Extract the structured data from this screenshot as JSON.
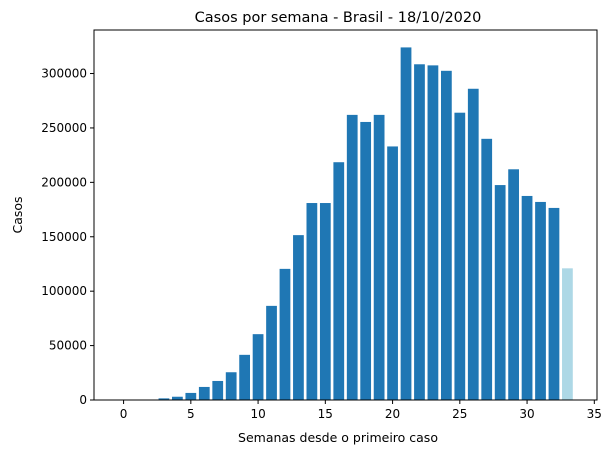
{
  "chart_data": {
    "type": "bar",
    "title": "Casos por semana - Brasil - 18/10/2020",
    "xlabel": "Semanas desde o primeiro caso",
    "ylabel": "Casos",
    "xlim": [
      -2.2,
      35.2
    ],
    "ylim": [
      0,
      340000
    ],
    "xticks": [
      0,
      5,
      10,
      15,
      20,
      25,
      30,
      35
    ],
    "yticks": [
      0,
      50000,
      100000,
      150000,
      200000,
      250000,
      300000
    ],
    "grid": false,
    "colors": {
      "bar": "#1f77b4",
      "last_bar": "#add8e6"
    },
    "x": [
      0,
      1,
      2,
      3,
      4,
      5,
      6,
      7,
      8,
      9,
      10,
      11,
      12,
      13,
      14,
      15,
      16,
      17,
      18,
      19,
      20,
      21,
      22,
      23,
      24,
      25,
      26,
      27,
      28,
      29,
      30,
      31,
      32,
      33
    ],
    "values": [
      1,
      2,
      300,
      1500,
      3000,
      6500,
      12000,
      17500,
      25500,
      41500,
      60500,
      86500,
      120500,
      151500,
      181000,
      181000,
      218500,
      262000,
      255500,
      262000,
      233000,
      324000,
      308500,
      307500,
      302500,
      264000,
      286000,
      240000,
      197500,
      212000,
      187500,
      182000,
      176500,
      121000
    ]
  }
}
